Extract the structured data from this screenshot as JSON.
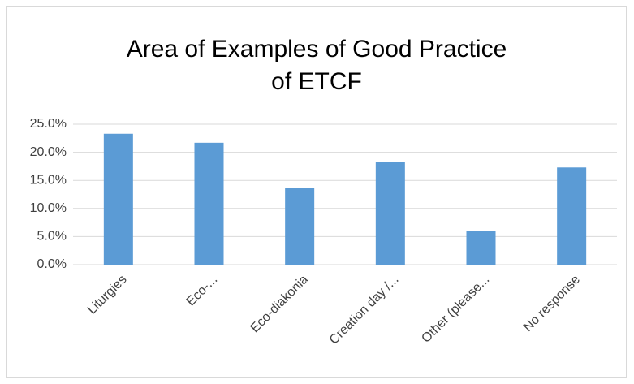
{
  "chart_data": {
    "type": "bar",
    "title": [
      "Area of Examples of Good Practice",
      "of ETCF"
    ],
    "categories": [
      "Liturgies",
      "Eco-...",
      "Eco-diakonia",
      "Creation day /...",
      "Other (please...",
      "No response"
    ],
    "values": [
      23.3,
      21.7,
      13.6,
      18.3,
      6.0,
      17.3
    ],
    "color": "#5b9bd5",
    "ylim": [
      0,
      25
    ],
    "yticks": [
      {
        "value": 0,
        "label": "0.0%"
      },
      {
        "value": 5,
        "label": "5.0%"
      },
      {
        "value": 10,
        "label": "10.0%"
      },
      {
        "value": 15,
        "label": "15.0%"
      },
      {
        "value": 20,
        "label": "20.0%"
      },
      {
        "value": 25,
        "label": "25.0%"
      }
    ],
    "grid": true
  }
}
